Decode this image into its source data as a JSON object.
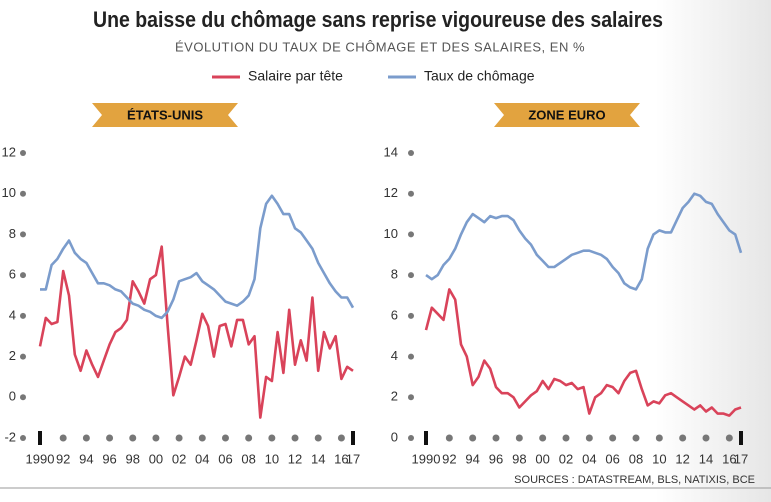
{
  "title": "Une baisse du chômage sans reprise vigoureuse des salaires",
  "subtitle": "ÉVOLUTION DU TAUX DE CHÔMAGE ET DES SALAIRES, EN %",
  "source": "SOURCES : DATASTREAM, BLS, NATIXIS, BCE",
  "chart_data": [
    {
      "type": "line",
      "title": "ÉTATS-UNIS",
      "x": [
        1990,
        1990.5,
        1991,
        1991.5,
        1992,
        1992.5,
        1993,
        1993.5,
        1994,
        1994.5,
        1995,
        1995.5,
        1996,
        1996.5,
        1997,
        1997.5,
        1998,
        1998.5,
        1999,
        1999.5,
        2000,
        2000.5,
        2001,
        2001.5,
        2002,
        2002.5,
        2003,
        2003.5,
        2004,
        2004.5,
        2005,
        2005.5,
        2006,
        2006.5,
        2007,
        2007.5,
        2008,
        2008.5,
        2009,
        2009.5,
        2010,
        2010.5,
        2011,
        2011.5,
        2012,
        2012.5,
        2013,
        2013.5,
        2014,
        2014.5,
        2015,
        2015.5,
        2016,
        2016.5,
        2017
      ],
      "series": [
        {
          "name": "Salaire par tête",
          "color": "#d9435a",
          "values": [
            2.5,
            3.9,
            3.6,
            3.7,
            6.2,
            5.0,
            2.1,
            1.3,
            2.3,
            1.6,
            1.0,
            1.8,
            2.6,
            3.2,
            3.4,
            3.8,
            5.7,
            5.2,
            4.6,
            5.8,
            6.0,
            7.4,
            3.6,
            0.1,
            1.0,
            2.0,
            1.6,
            2.8,
            4.1,
            3.5,
            2.0,
            3.5,
            3.6,
            2.5,
            3.8,
            3.8,
            2.6,
            3.0,
            -1.0,
            1.0,
            0.8,
            3.2,
            1.2,
            4.3,
            1.6,
            2.8,
            1.8,
            4.9,
            1.3,
            3.2,
            2.4,
            3.0,
            0.9,
            1.5,
            1.3
          ]
        },
        {
          "name": "Taux de chômage",
          "color": "#7b9ccc",
          "values": [
            5.3,
            5.3,
            6.5,
            6.8,
            7.3,
            7.7,
            7.1,
            6.8,
            6.6,
            6.1,
            5.6,
            5.6,
            5.5,
            5.3,
            5.2,
            4.9,
            4.6,
            4.5,
            4.3,
            4.2,
            4.0,
            3.9,
            4.2,
            4.8,
            5.7,
            5.8,
            5.9,
            6.1,
            5.7,
            5.5,
            5.3,
            5.0,
            4.7,
            4.6,
            4.5,
            4.7,
            5.0,
            5.8,
            8.3,
            9.5,
            9.9,
            9.5,
            9.0,
            9.0,
            8.3,
            8.1,
            7.7,
            7.3,
            6.6,
            6.1,
            5.6,
            5.2,
            4.9,
            4.9,
            4.4
          ]
        }
      ],
      "xlim": [
        1990,
        2017
      ],
      "xticks": [
        1990,
        {
          "value": 1992,
          "label": "92"
        },
        {
          "value": 1994,
          "label": "94"
        },
        {
          "value": 1996,
          "label": "96"
        },
        {
          "value": 1998,
          "label": "98"
        },
        {
          "value": 2000,
          "label": "00"
        },
        {
          "value": 2002,
          "label": "02"
        },
        {
          "value": 2004,
          "label": "04"
        },
        {
          "value": 2006,
          "label": "06"
        },
        {
          "value": 2008,
          "label": "08"
        },
        {
          "value": 2010,
          "label": "10"
        },
        {
          "value": 2012,
          "label": "12"
        },
        {
          "value": 2014,
          "label": "14"
        },
        {
          "value": 2016,
          "label": "16"
        },
        {
          "value": 2017,
          "label": "17"
        }
      ],
      "ylim": [
        -2,
        12
      ],
      "yticks": [
        -2,
        0,
        2,
        4,
        6,
        8,
        10,
        12
      ]
    },
    {
      "type": "line",
      "title": "ZONE EURO",
      "x": [
        1990,
        1990.5,
        1991,
        1991.5,
        1992,
        1992.5,
        1993,
        1993.5,
        1994,
        1994.5,
        1995,
        1995.5,
        1996,
        1996.5,
        1997,
        1997.5,
        1998,
        1998.5,
        1999,
        1999.5,
        2000,
        2000.5,
        2001,
        2001.5,
        2002,
        2002.5,
        2003,
        2003.5,
        2004,
        2004.5,
        2005,
        2005.5,
        2006,
        2006.5,
        2007,
        2007.5,
        2008,
        2008.5,
        2009,
        2009.5,
        2010,
        2010.5,
        2011,
        2011.5,
        2012,
        2012.5,
        2013,
        2013.5,
        2014,
        2014.5,
        2015,
        2015.5,
        2016,
        2016.5,
        2017
      ],
      "series": [
        {
          "name": "Salaire par tête",
          "color": "#d9435a",
          "values": [
            5.3,
            6.4,
            6.1,
            5.8,
            7.3,
            6.8,
            4.6,
            4.0,
            2.6,
            3.0,
            3.8,
            3.4,
            2.5,
            2.2,
            2.2,
            2.0,
            1.5,
            1.8,
            2.1,
            2.3,
            2.8,
            2.4,
            2.9,
            2.8,
            2.6,
            2.7,
            2.4,
            2.5,
            1.2,
            2.0,
            2.2,
            2.6,
            2.5,
            2.2,
            2.8,
            3.2,
            3.3,
            2.4,
            1.6,
            1.8,
            1.7,
            2.1,
            2.2,
            2.0,
            1.8,
            1.6,
            1.4,
            1.6,
            1.3,
            1.5,
            1.2,
            1.2,
            1.1,
            1.4,
            1.5
          ]
        },
        {
          "name": "Taux de chômage",
          "color": "#7b9ccc",
          "values": [
            8.0,
            7.8,
            8.0,
            8.5,
            8.8,
            9.3,
            10.0,
            10.6,
            11.0,
            10.8,
            10.6,
            10.9,
            10.8,
            10.9,
            10.9,
            10.7,
            10.2,
            9.8,
            9.5,
            9.0,
            8.7,
            8.4,
            8.4,
            8.6,
            8.8,
            9.0,
            9.1,
            9.2,
            9.2,
            9.1,
            9.0,
            8.8,
            8.4,
            8.1,
            7.6,
            7.4,
            7.3,
            7.8,
            9.3,
            10.0,
            10.2,
            10.1,
            10.1,
            10.7,
            11.3,
            11.6,
            12.0,
            11.9,
            11.6,
            11.5,
            11.0,
            10.6,
            10.2,
            10.0,
            9.1
          ]
        }
      ],
      "xlim": [
        1990,
        2017
      ],
      "xticks": [
        1990,
        {
          "value": 1992,
          "label": "92"
        },
        {
          "value": 1994,
          "label": "94"
        },
        {
          "value": 1996,
          "label": "96"
        },
        {
          "value": 1998,
          "label": "98"
        },
        {
          "value": 2000,
          "label": "00"
        },
        {
          "value": 2002,
          "label": "02"
        },
        {
          "value": 2004,
          "label": "04"
        },
        {
          "value": 2006,
          "label": "06"
        },
        {
          "value": 2008,
          "label": "08"
        },
        {
          "value": 2010,
          "label": "10"
        },
        {
          "value": 2012,
          "label": "12"
        },
        {
          "value": 2014,
          "label": "14"
        },
        {
          "value": 2016,
          "label": "16"
        },
        {
          "value": 2017,
          "label": "17"
        }
      ],
      "ylim": [
        0,
        14
      ],
      "yticks": [
        0,
        2,
        4,
        6,
        8,
        10,
        12,
        14
      ]
    }
  ]
}
